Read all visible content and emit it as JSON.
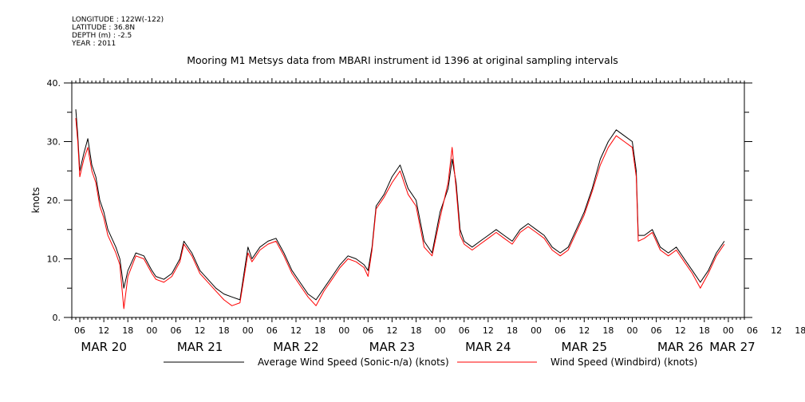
{
  "header": {
    "meta_lines": [
      "LONGITUDE : 122W(-122)",
      "LATITUDE : 36.8N",
      "DEPTH (m) : -2.5",
      "YEAR : 2011"
    ]
  },
  "chart_data": {
    "type": "line",
    "title": "Mooring M1 Metsys data from MBARI instrument id 1396 at original sampling intervals",
    "xlabel": "",
    "ylabel": "knots",
    "ylim": [
      0,
      40
    ],
    "yticks": [
      "0.",
      "10.",
      "20.",
      "30.",
      "40."
    ],
    "xlim": [
      "2011-03-20T04:00",
      "2011-03-27T04:00"
    ],
    "x_hour_ticks": [
      "06",
      "12",
      "18",
      "00",
      "06",
      "12",
      "18",
      "00",
      "06",
      "12",
      "18",
      "00",
      "06",
      "12",
      "18",
      "00",
      "06",
      "12",
      "18",
      "00",
      "06",
      "12",
      "18",
      "00",
      "06",
      "12",
      "18",
      "00",
      "06",
      "12",
      "18",
      "00",
      "06"
    ],
    "x_day_labels": [
      "MAR 20",
      "MAR 21",
      "MAR 22",
      "MAR 23",
      "MAR 24",
      "MAR 25",
      "MAR 26",
      "MAR 27"
    ],
    "grid": false,
    "legend_position": "bottom",
    "colors": {
      "sonic": "#000000",
      "windbird": "#ff0000",
      "axis": "#000000"
    },
    "series": [
      {
        "name": "Average Wind Speed (Sonic-n/a) (knots)",
        "color": "#000000",
        "points": [
          [
            "2011-03-20T05:00",
            35.5
          ],
          [
            "2011-03-20T05:30",
            31
          ],
          [
            "2011-03-20T06:00",
            25
          ],
          [
            "2011-03-20T07:00",
            28
          ],
          [
            "2011-03-20T08:00",
            30.5
          ],
          [
            "2011-03-20T09:00",
            26
          ],
          [
            "2011-03-20T10:00",
            24
          ],
          [
            "2011-03-20T11:00",
            20
          ],
          [
            "2011-03-20T12:00",
            18
          ],
          [
            "2011-03-20T13:00",
            15
          ],
          [
            "2011-03-20T14:00",
            13.5
          ],
          [
            "2011-03-20T15:00",
            12
          ],
          [
            "2011-03-20T16:00",
            10
          ],
          [
            "2011-03-20T17:00",
            5
          ],
          [
            "2011-03-20T18:00",
            8
          ],
          [
            "2011-03-20T20:00",
            11
          ],
          [
            "2011-03-20T22:00",
            10.5
          ],
          [
            "2011-03-21T00:00",
            8
          ],
          [
            "2011-03-21T01:00",
            7
          ],
          [
            "2011-03-21T03:00",
            6.5
          ],
          [
            "2011-03-21T05:00",
            7.5
          ],
          [
            "2011-03-21T07:00",
            10
          ],
          [
            "2011-03-21T08:00",
            13
          ],
          [
            "2011-03-21T10:00",
            11
          ],
          [
            "2011-03-21T12:00",
            8
          ],
          [
            "2011-03-21T14:00",
            6.5
          ],
          [
            "2011-03-21T16:00",
            5
          ],
          [
            "2011-03-21T18:00",
            4
          ],
          [
            "2011-03-21T20:00",
            3.5
          ],
          [
            "2011-03-21T22:00",
            3
          ],
          [
            "2011-03-22T00:00",
            12
          ],
          [
            "2011-03-22T01:00",
            10
          ],
          [
            "2011-03-22T03:00",
            12
          ],
          [
            "2011-03-22T05:00",
            13
          ],
          [
            "2011-03-22T07:00",
            13.5
          ],
          [
            "2011-03-22T09:00",
            11
          ],
          [
            "2011-03-22T11:00",
            8
          ],
          [
            "2011-03-22T13:00",
            6
          ],
          [
            "2011-03-22T15:00",
            4
          ],
          [
            "2011-03-22T17:00",
            3
          ],
          [
            "2011-03-22T19:00",
            5
          ],
          [
            "2011-03-22T21:00",
            7
          ],
          [
            "2011-03-22T23:00",
            9
          ],
          [
            "2011-03-23T01:00",
            10.5
          ],
          [
            "2011-03-23T03:00",
            10
          ],
          [
            "2011-03-23T05:00",
            9
          ],
          [
            "2011-03-23T06:00",
            8
          ],
          [
            "2011-03-23T07:00",
            12
          ],
          [
            "2011-03-23T08:00",
            19
          ],
          [
            "2011-03-23T10:00",
            21
          ],
          [
            "2011-03-23T12:00",
            24
          ],
          [
            "2011-03-23T14:00",
            26
          ],
          [
            "2011-03-23T16:00",
            22
          ],
          [
            "2011-03-23T18:00",
            20
          ],
          [
            "2011-03-23T20:00",
            13
          ],
          [
            "2011-03-23T22:00",
            11
          ],
          [
            "2011-03-24T00:00",
            18
          ],
          [
            "2011-03-24T02:00",
            22
          ],
          [
            "2011-03-24T03:00",
            27
          ],
          [
            "2011-03-24T04:00",
            23
          ],
          [
            "2011-03-24T05:00",
            15
          ],
          [
            "2011-03-24T06:00",
            13
          ],
          [
            "2011-03-24T08:00",
            12
          ],
          [
            "2011-03-24T10:00",
            13
          ],
          [
            "2011-03-24T12:00",
            14
          ],
          [
            "2011-03-24T14:00",
            15
          ],
          [
            "2011-03-24T16:00",
            14
          ],
          [
            "2011-03-24T18:00",
            13
          ],
          [
            "2011-03-24T20:00",
            15
          ],
          [
            "2011-03-24T22:00",
            16
          ],
          [
            "2011-03-25T00:00",
            15
          ],
          [
            "2011-03-25T02:00",
            14
          ],
          [
            "2011-03-25T04:00",
            12
          ],
          [
            "2011-03-25T06:00",
            11
          ],
          [
            "2011-03-25T08:00",
            12
          ],
          [
            "2011-03-25T10:00",
            15
          ],
          [
            "2011-03-25T12:00",
            18
          ],
          [
            "2011-03-25T14:00",
            22
          ],
          [
            "2011-03-25T16:00",
            27
          ],
          [
            "2011-03-25T18:00",
            30
          ],
          [
            "2011-03-25T20:00",
            32
          ],
          [
            "2011-03-25T22:00",
            31
          ],
          [
            "2011-03-26T00:00",
            30
          ],
          [
            "2011-03-26T01:00",
            25
          ],
          [
            "2011-03-26T01:30",
            14
          ],
          [
            "2011-03-26T03:00",
            14
          ],
          [
            "2011-03-26T05:00",
            15
          ],
          [
            "2011-03-26T07:00",
            12
          ],
          [
            "2011-03-26T09:00",
            11
          ],
          [
            "2011-03-26T11:00",
            12
          ],
          [
            "2011-03-26T13:00",
            10
          ],
          [
            "2011-03-26T15:00",
            8
          ],
          [
            "2011-03-26T17:00",
            6
          ],
          [
            "2011-03-26T19:00",
            8
          ],
          [
            "2011-03-26T21:00",
            11
          ],
          [
            "2011-03-26T23:00",
            13
          ]
        ]
      },
      {
        "name": "Wind Speed (Windbird) (knots)",
        "color": "#ff0000",
        "points": [
          [
            "2011-03-20T05:00",
            34
          ],
          [
            "2011-03-20T05:30",
            30
          ],
          [
            "2011-03-20T06:00",
            24
          ],
          [
            "2011-03-20T07:00",
            27
          ],
          [
            "2011-03-20T08:00",
            29
          ],
          [
            "2011-03-20T09:00",
            25
          ],
          [
            "2011-03-20T10:00",
            23
          ],
          [
            "2011-03-20T11:00",
            19
          ],
          [
            "2011-03-20T12:00",
            17
          ],
          [
            "2011-03-20T13:00",
            14
          ],
          [
            "2011-03-20T14:00",
            12.5
          ],
          [
            "2011-03-20T15:00",
            11
          ],
          [
            "2011-03-20T16:00",
            9
          ],
          [
            "2011-03-20T17:00",
            1.5
          ],
          [
            "2011-03-20T18:00",
            7
          ],
          [
            "2011-03-20T20:00",
            10.5
          ],
          [
            "2011-03-20T22:00",
            10
          ],
          [
            "2011-03-21T00:00",
            7.5
          ],
          [
            "2011-03-21T01:00",
            6.5
          ],
          [
            "2011-03-21T03:00",
            6
          ],
          [
            "2011-03-21T05:00",
            7
          ],
          [
            "2011-03-21T07:00",
            9.5
          ],
          [
            "2011-03-21T08:00",
            12.5
          ],
          [
            "2011-03-21T10:00",
            10.5
          ],
          [
            "2011-03-21T12:00",
            7.5
          ],
          [
            "2011-03-21T14:00",
            6
          ],
          [
            "2011-03-21T16:00",
            4.5
          ],
          [
            "2011-03-21T18:00",
            3
          ],
          [
            "2011-03-21T20:00",
            2
          ],
          [
            "2011-03-21T22:00",
            2.5
          ],
          [
            "2011-03-22T00:00",
            11
          ],
          [
            "2011-03-22T01:00",
            9.5
          ],
          [
            "2011-03-22T03:00",
            11.5
          ],
          [
            "2011-03-22T05:00",
            12.5
          ],
          [
            "2011-03-22T07:00",
            13
          ],
          [
            "2011-03-22T09:00",
            10.5
          ],
          [
            "2011-03-22T11:00",
            7.5
          ],
          [
            "2011-03-22T13:00",
            5.5
          ],
          [
            "2011-03-22T15:00",
            3.5
          ],
          [
            "2011-03-22T17:00",
            2
          ],
          [
            "2011-03-22T19:00",
            4.5
          ],
          [
            "2011-03-22T21:00",
            6.5
          ],
          [
            "2011-03-22T23:00",
            8.5
          ],
          [
            "2011-03-23T01:00",
            10
          ],
          [
            "2011-03-23T03:00",
            9.5
          ],
          [
            "2011-03-23T05:00",
            8.5
          ],
          [
            "2011-03-23T06:00",
            7
          ],
          [
            "2011-03-23T07:00",
            11.5
          ],
          [
            "2011-03-23T08:00",
            18.5
          ],
          [
            "2011-03-23T10:00",
            20.5
          ],
          [
            "2011-03-23T12:00",
            23
          ],
          [
            "2011-03-23T14:00",
            25
          ],
          [
            "2011-03-23T16:00",
            21
          ],
          [
            "2011-03-23T18:00",
            19
          ],
          [
            "2011-03-23T20:00",
            12
          ],
          [
            "2011-03-23T22:00",
            10.5
          ],
          [
            "2011-03-24T00:00",
            17
          ],
          [
            "2011-03-24T02:00",
            23
          ],
          [
            "2011-03-24T03:00",
            29
          ],
          [
            "2011-03-24T04:00",
            22
          ],
          [
            "2011-03-24T05:00",
            14
          ],
          [
            "2011-03-24T06:00",
            12.5
          ],
          [
            "2011-03-24T08:00",
            11.5
          ],
          [
            "2011-03-24T10:00",
            12.5
          ],
          [
            "2011-03-24T12:00",
            13.5
          ],
          [
            "2011-03-24T14:00",
            14.5
          ],
          [
            "2011-03-24T16:00",
            13.5
          ],
          [
            "2011-03-24T18:00",
            12.5
          ],
          [
            "2011-03-24T20:00",
            14.5
          ],
          [
            "2011-03-24T22:00",
            15.5
          ],
          [
            "2011-03-25T00:00",
            14.5
          ],
          [
            "2011-03-25T02:00",
            13.5
          ],
          [
            "2011-03-25T04:00",
            11.5
          ],
          [
            "2011-03-25T06:00",
            10.5
          ],
          [
            "2011-03-25T08:00",
            11.5
          ],
          [
            "2011-03-25T10:00",
            14.5
          ],
          [
            "2011-03-25T12:00",
            17.5
          ],
          [
            "2011-03-25T14:00",
            21.5
          ],
          [
            "2011-03-25T16:00",
            26
          ],
          [
            "2011-03-25T18:00",
            29
          ],
          [
            "2011-03-25T20:00",
            31
          ],
          [
            "2011-03-25T22:00",
            30
          ],
          [
            "2011-03-26T00:00",
            29
          ],
          [
            "2011-03-26T01:00",
            24
          ],
          [
            "2011-03-26T01:30",
            13
          ],
          [
            "2011-03-26T03:00",
            13.5
          ],
          [
            "2011-03-26T05:00",
            14.5
          ],
          [
            "2011-03-26T07:00",
            11.5
          ],
          [
            "2011-03-26T09:00",
            10.5
          ],
          [
            "2011-03-26T11:00",
            11.5
          ],
          [
            "2011-03-26T13:00",
            9.5
          ],
          [
            "2011-03-26T15:00",
            7.5
          ],
          [
            "2011-03-26T17:00",
            5
          ],
          [
            "2011-03-26T19:00",
            7.5
          ],
          [
            "2011-03-26T21:00",
            10.5
          ],
          [
            "2011-03-26T23:00",
            12.5
          ]
        ]
      }
    ]
  }
}
